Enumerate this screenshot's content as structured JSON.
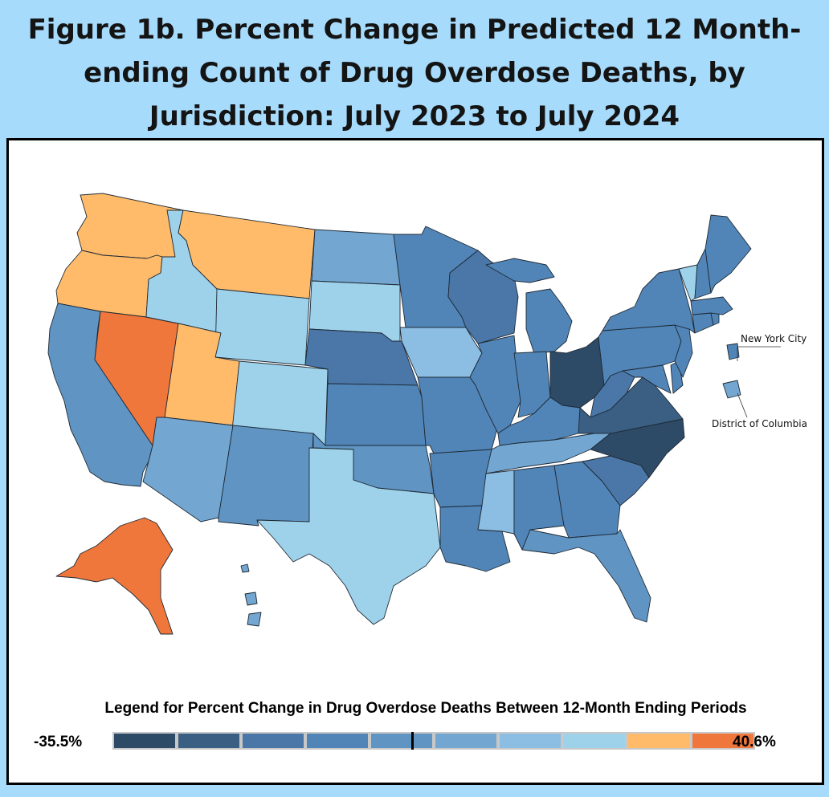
{
  "figure": {
    "title": "Figure 1b. Percent Change in Predicted 12 Month-ending Count of Drug Overdose Deaths, by Jurisdiction: July 2023 to July 2024"
  },
  "map": {
    "callouts": {
      "nyc": "New York City",
      "dc": "District of Columbia"
    },
    "colors": {
      "bin1": "#2d4a66",
      "bin2": "#3a5f83",
      "bin3": "#4a77a8",
      "bin4": "#5185b8",
      "bin5": "#5f94c3",
      "bin6": "#73a7d2",
      "bin7": "#8cbde2",
      "bin8": "#9ed2ea",
      "bin9": "#ffbb6a",
      "bin10": "#f0773c"
    },
    "states": [
      {
        "name": "Washington",
        "bin": "bin9"
      },
      {
        "name": "Oregon",
        "bin": "bin9"
      },
      {
        "name": "California",
        "bin": "bin5"
      },
      {
        "name": "Nevada",
        "bin": "bin10"
      },
      {
        "name": "Idaho",
        "bin": "bin8"
      },
      {
        "name": "Montana",
        "bin": "bin9"
      },
      {
        "name": "Wyoming",
        "bin": "bin8"
      },
      {
        "name": "Utah",
        "bin": "bin9"
      },
      {
        "name": "Colorado",
        "bin": "bin8"
      },
      {
        "name": "Arizona",
        "bin": "bin6"
      },
      {
        "name": "New Mexico",
        "bin": "bin5"
      },
      {
        "name": "North Dakota",
        "bin": "bin6"
      },
      {
        "name": "South Dakota",
        "bin": "bin8"
      },
      {
        "name": "Nebraska",
        "bin": "bin3"
      },
      {
        "name": "Kansas",
        "bin": "bin4"
      },
      {
        "name": "Oklahoma",
        "bin": "bin5"
      },
      {
        "name": "Texas",
        "bin": "bin8"
      },
      {
        "name": "Minnesota",
        "bin": "bin4"
      },
      {
        "name": "Iowa",
        "bin": "bin7"
      },
      {
        "name": "Missouri",
        "bin": "bin4"
      },
      {
        "name": "Arkansas",
        "bin": "bin4"
      },
      {
        "name": "Louisiana",
        "bin": "bin4"
      },
      {
        "name": "Wisconsin",
        "bin": "bin3"
      },
      {
        "name": "Illinois",
        "bin": "bin4"
      },
      {
        "name": "Michigan",
        "bin": "bin4"
      },
      {
        "name": "Indiana",
        "bin": "bin4"
      },
      {
        "name": "Ohio",
        "bin": "bin1"
      },
      {
        "name": "Kentucky",
        "bin": "bin4"
      },
      {
        "name": "Tennessee",
        "bin": "bin6"
      },
      {
        "name": "Mississippi",
        "bin": "bin7"
      },
      {
        "name": "Alabama",
        "bin": "bin4"
      },
      {
        "name": "Georgia",
        "bin": "bin4"
      },
      {
        "name": "Florida",
        "bin": "bin5"
      },
      {
        "name": "South Carolina",
        "bin": "bin3"
      },
      {
        "name": "North Carolina",
        "bin": "bin1"
      },
      {
        "name": "Virginia",
        "bin": "bin2"
      },
      {
        "name": "West Virginia",
        "bin": "bin3"
      },
      {
        "name": "Maryland",
        "bin": "bin4"
      },
      {
        "name": "Delaware",
        "bin": "bin4"
      },
      {
        "name": "Pennsylvania",
        "bin": "bin4"
      },
      {
        "name": "New Jersey",
        "bin": "bin4"
      },
      {
        "name": "New York",
        "bin": "bin4"
      },
      {
        "name": "Connecticut",
        "bin": "bin4"
      },
      {
        "name": "Rhode Island",
        "bin": "bin4"
      },
      {
        "name": "Massachusetts",
        "bin": "bin4"
      },
      {
        "name": "Vermont",
        "bin": "bin8"
      },
      {
        "name": "New Hampshire",
        "bin": "bin4"
      },
      {
        "name": "Maine",
        "bin": "bin4"
      },
      {
        "name": "Alaska",
        "bin": "bin10"
      },
      {
        "name": "Hawaii",
        "bin": "bin6"
      },
      {
        "name": "New York City",
        "bin": "bin4"
      },
      {
        "name": "District of Columbia",
        "bin": "bin6"
      }
    ]
  },
  "legend": {
    "title": "Legend for Percent Change in Drug Overdose Deaths Between 12-Month Ending Periods",
    "min_label": "-35.5%",
    "max_label": "40.6%",
    "min_value": -35.5,
    "max_value": 40.6,
    "zero_value": 0,
    "bins": [
      "bin1",
      "bin2",
      "bin3",
      "bin4",
      "bin5",
      "bin6",
      "bin7",
      "bin8",
      "bin9",
      "bin10"
    ]
  }
}
